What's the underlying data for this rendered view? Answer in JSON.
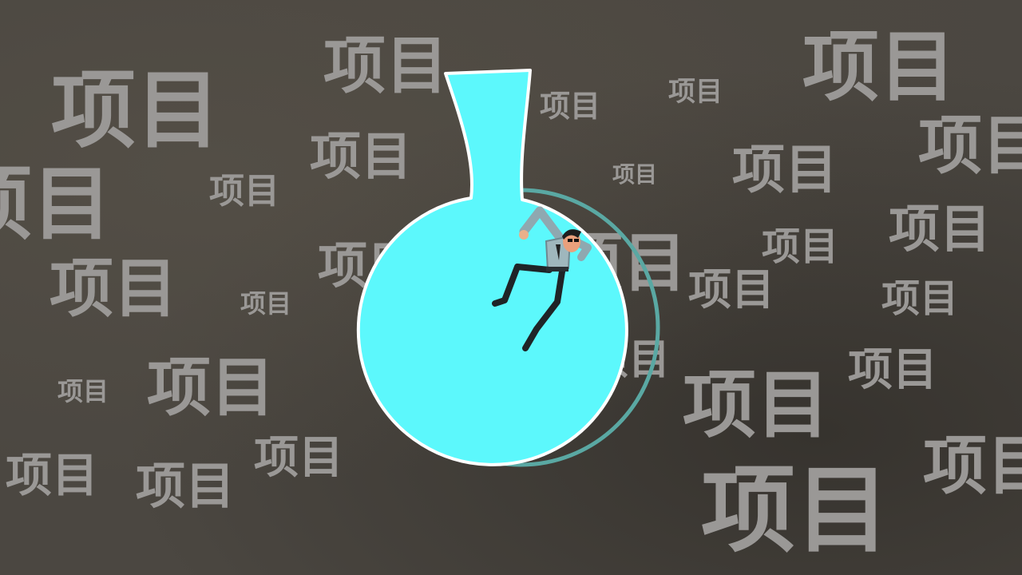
{
  "scene": {
    "background_color": "#4b4741",
    "word_color": "#9a9896",
    "flask_liquid_color": "#5cf8fc",
    "flask_outline_color": "#ffffff",
    "flask_shadow_color": "#5aa8a3",
    "floating_word": "项目"
  },
  "icons": [
    "falling-man-figure",
    "round-bottom-flask"
  ]
}
